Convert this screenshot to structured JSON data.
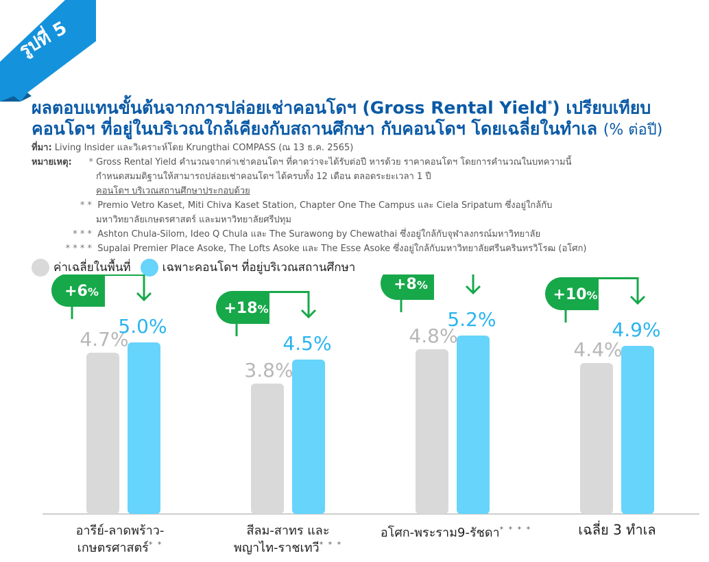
{
  "figure_label": "รูปที่ 5",
  "title": {
    "line1_a": "ผลตอบแทนขั้นต้นจากการปล่อยเช่าคอนโดฯ (Gross Rental Yield",
    "line1_sup": "*",
    "line1_b": ") เปรียบเทียบ",
    "line2": "คอนโดฯ ที่อยู่ในบริเวณใกล้เคียงกับสถานศึกษา กับคอนโดฯ โดยเฉลี่ยในทำเล",
    "unit": "(% ต่อปี)"
  },
  "notes": {
    "source_label": "ที่มา:",
    "source": "Living Insider และวิเคราะห์โดย Krungthai COMPASS (ณ 13 ธ.ค. 2565)",
    "remark_label": "หมายเหตุ:",
    "items": [
      {
        "mark": "*",
        "text": "Gross Rental Yield คำนวณจากค่าเช่าคอนโดฯ ที่คาดว่าจะได้รับต่อปี หารด้วย ราคาคอนโดฯ โดยการคำนวณในบทความนี้"
      },
      {
        "mark": "",
        "text": "กำหนดสมมติฐานให้สามารถปล่อยเช่าคอนโดฯ ได้ครบทั้ง 12 เดือน ตลอดระยะเวลา 1 ปี"
      },
      {
        "mark": "",
        "text": "คอนโดฯ บริเวณสถานศึกษาประกอบด้วย"
      },
      {
        "mark": "* *",
        "text": "Premio Vetro Kaset, Miti Chiva Kaset Station, Chapter One The Campus และ Ciela Sripatum ซึ่งอยู่ใกล้กับ"
      },
      {
        "mark": "",
        "text": "มหาวิทยาลัยเกษตรศาสตร์ และมหาวิทยาลัยศรีปทุม"
      },
      {
        "mark": "* * *",
        "text": "Ashton Chula-Silom, Ideo Q Chula และ The Surawong by Chewathai ซึ่งอยู่ใกล้กับจุฬาลงกรณ์มหาวิทยาลัย"
      },
      {
        "mark": "* * * *",
        "text": "Supalai Premier Place Asoke, The Lofts Asoke และ The Esse Asoke ซึ่งอยู่ใกล้กับมหาวิทยาลัยศรีนครินทรวิโรฒ (อโศก)"
      }
    ]
  },
  "colors": {
    "average": "#d9d9d9",
    "near_school": "#66d4fb",
    "average_label": "#b7b7b7",
    "near_school_label": "#2ab4ef",
    "callout": "#17a84a",
    "title": "#0a5aa6",
    "ribbon": "#1592dc"
  },
  "chart_data": {
    "type": "bar",
    "legend": "top-left",
    "categories": [
      {
        "line1": "อารีย์-ลาดพร้าว-",
        "line2": "เกษตรศาสตร์",
        "stars": "* *"
      },
      {
        "line1": "สีลม-สาทร และ",
        "line2": "พญาไท-ราชเทวี",
        "stars": "* * *"
      },
      {
        "line1": "อโศก-พระราม9-รัชดา",
        "line2": "",
        "stars": "* * * *"
      },
      {
        "line1": "เฉลี่ย 3 ทำเล",
        "line2": "",
        "stars": ""
      }
    ],
    "series": [
      {
        "name": "ค่าเฉลี่ยในพื้นที่",
        "values": [
          4.7,
          3.8,
          4.8,
          4.4
        ],
        "labels": [
          "4.7%",
          "3.8%",
          "4.8%",
          "4.4%"
        ]
      },
      {
        "name": "เฉพาะคอนโดฯ ที่อยู่บริเวณสถานศึกษา",
        "values": [
          5.0,
          4.5,
          5.2,
          4.9
        ],
        "labels": [
          "5.0%",
          "4.5%",
          "5.2%",
          "4.9%"
        ]
      }
    ],
    "differences": [
      {
        "num": "+6",
        "pct": "%"
      },
      {
        "num": "+18",
        "pct": "%"
      },
      {
        "num": "+8",
        "pct": "%"
      },
      {
        "num": "+10",
        "pct": "%"
      }
    ],
    "ylim": [
      0,
      5.6
    ]
  }
}
